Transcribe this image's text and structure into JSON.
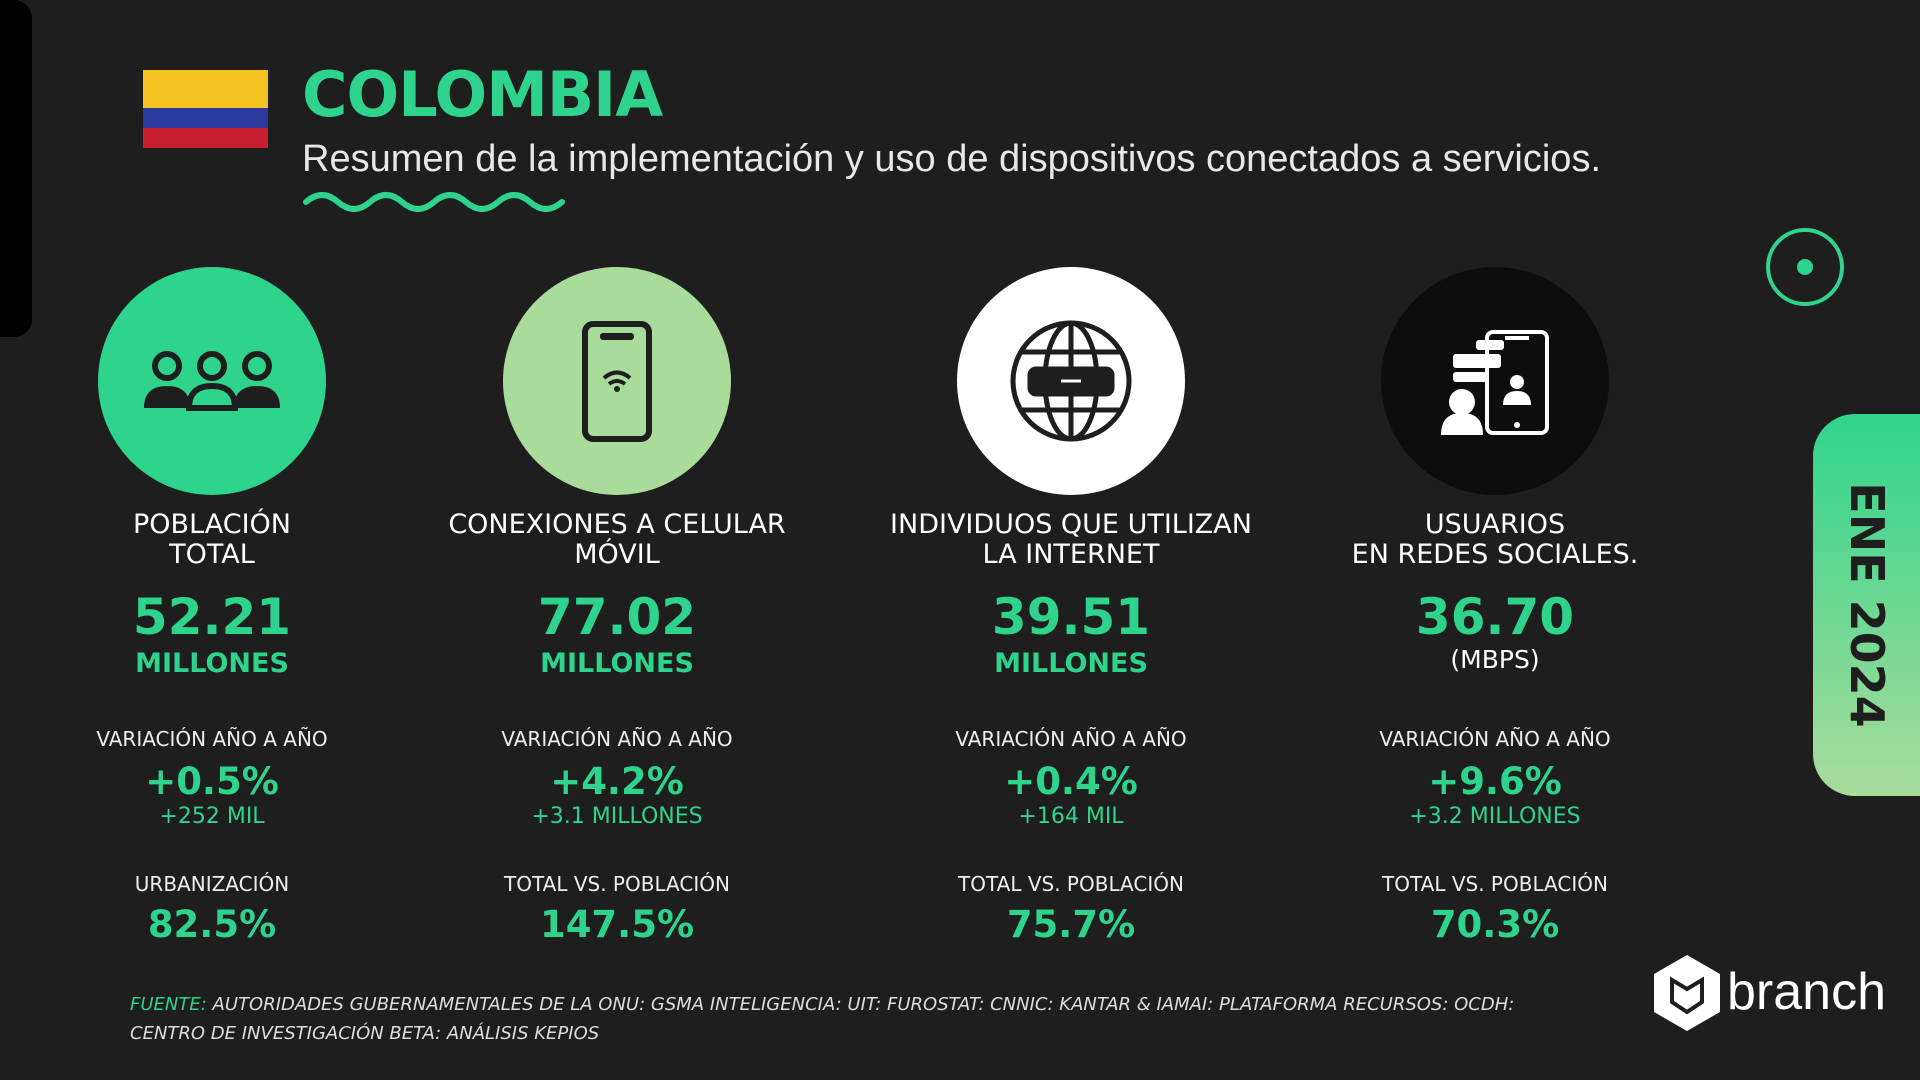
{
  "header": {
    "title": "COLOMBIA",
    "subtitle": "Resumen de la implementación y uso de dispositivos conectados  a servicios."
  },
  "date_tag": "ENE 2024",
  "cards": [
    {
      "title_lines": [
        "POBLACIÓN",
        "TOTAL"
      ],
      "value": "52.21",
      "unit": "MILLONES",
      "variation_label": "VARIACIÓN AÑO A AÑO",
      "variation_pct": "+0.5%",
      "variation_abs": "+252 MIL",
      "ratio_label": "URBANIZACIÓN",
      "ratio_value": "82.5%"
    },
    {
      "title_lines": [
        "CONEXIONES A CELULAR",
        "MÓVIL"
      ],
      "value": "77.02",
      "unit": "MILLONES",
      "variation_label": "VARIACIÓN AÑO A AÑO",
      "variation_pct": "+4.2%",
      "variation_abs": "+3.1 MILLONES",
      "ratio_label": "TOTAL VS. POBLACIÓN",
      "ratio_value": "147.5%"
    },
    {
      "title_lines": [
        "INDIVIDUOS QUE UTILIZAN",
        "LA INTERNET"
      ],
      "value": "39.51",
      "unit": "MILLONES",
      "variation_label": "VARIACIÓN AÑO A AÑO",
      "variation_pct": "+0.4%",
      "variation_abs": "+164 MIL",
      "ratio_label": "TOTAL VS. POBLACIÓN",
      "ratio_value": "75.7%"
    },
    {
      "title_lines": [
        "USUARIOS",
        "EN REDES SOCIALES."
      ],
      "value": "36.70",
      "unit": "(MBPS)",
      "variation_label": "VARIACIÓN AÑO A AÑO",
      "variation_pct": "+9.6%",
      "variation_abs": "+3.2 MILLONES",
      "ratio_label": "TOTAL VS. POBLACIÓN",
      "ratio_value": "70.3%"
    }
  ],
  "source": {
    "label": "FUENTE:",
    "text": "AUTORIDADES GUBERNAMENTALES DE LA ONU: GSMA INTELIGENCIA: UIT: FUROSTAT: CNNIC: KANTAR & IAMAI: PLATAFORMA RECURSOS: OCDH: CENTRO DE INVESTIGACIÓN BETA: ANÁLISIS KEPIOS"
  },
  "brand": "branch"
}
